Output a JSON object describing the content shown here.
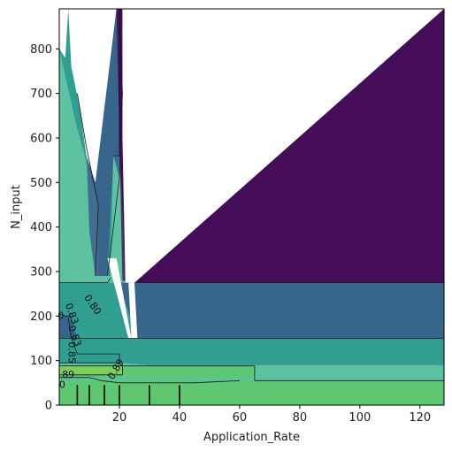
{
  "chart_data": {
    "type": "contour",
    "xlabel": "Application_Rate",
    "ylabel": "N_input",
    "xlim": [
      0,
      128
    ],
    "ylim": [
      0,
      890
    ],
    "xticks": [
      20,
      40,
      60,
      80,
      100,
      120
    ],
    "yticks": [
      0,
      100,
      200,
      300,
      400,
      500,
      600,
      700,
      800
    ],
    "grid": false,
    "colormap": "viridis",
    "alpha": 0.75,
    "fill_colors": {
      "level_lt_080": "#440154",
      "level_080_083": "#3b528b",
      "level_083_085": "#21918c",
      "level_085_087": "#27ad81",
      "level_087_089": "#5ec962",
      "level_ge_089": "#fde725",
      "line": "#1a1a1a"
    },
    "contour_levels": [
      0.8,
      0.83,
      0.85,
      0.87,
      0.89
    ],
    "contour_labels": [
      {
        "text": "0.80",
        "x": 11,
        "y": 225,
        "rotation": 55
      },
      {
        "text": "0.83",
        "x": 4,
        "y": 205,
        "rotation": 70
      },
      {
        "text": "0.83",
        "x": 5,
        "y": 155,
        "rotation": 70
      },
      {
        "text": "0.85",
        "x": 4,
        "y": 118,
        "rotation": 90
      },
      {
        "text": "0.89",
        "x": 19,
        "y": 80,
        "rotation": -60
      },
      {
        "text": "89",
        "x": 3,
        "y": 68,
        "rotation": 0
      },
      {
        "text": "0",
        "x": 0.5,
        "y": 200,
        "rotation": 0
      },
      {
        "text": "0",
        "x": 1,
        "y": 45,
        "rotation": 0
      }
    ],
    "regions": [
      {
        "level": "level_085_087",
        "points": [
          [
            0,
            890
          ],
          [
            128,
            890
          ],
          [
            128,
            0
          ],
          [
            0,
            0
          ]
        ]
      },
      {
        "level": "level_087_089",
        "points": [
          [
            0,
            55
          ],
          [
            128,
            55
          ],
          [
            128,
            0
          ],
          [
            0,
            0
          ]
        ]
      },
      {
        "level": "level_ge_089",
        "points": [
          [
            0,
            88
          ],
          [
            21,
            88
          ],
          [
            21,
            68
          ],
          [
            0,
            68
          ]
        ]
      },
      {
        "level": "level_087_089",
        "points": [
          [
            0,
            88
          ],
          [
            65,
            88
          ],
          [
            65,
            62
          ],
          [
            0,
            62
          ]
        ]
      },
      {
        "level": "level_083_085",
        "points": [
          [
            0,
            275
          ],
          [
            128,
            275
          ],
          [
            128,
            90
          ],
          [
            65,
            90
          ],
          [
            30,
            90
          ],
          [
            20,
            95
          ],
          [
            0,
            95
          ]
        ]
      },
      {
        "level": "level_083_085",
        "points": [
          [
            0,
            890
          ],
          [
            11,
            890
          ],
          [
            20,
            890
          ],
          [
            20,
            560
          ],
          [
            18,
            560
          ],
          [
            17,
            290
          ],
          [
            13,
            290
          ],
          [
            13,
            450
          ],
          [
            6,
            620
          ],
          [
            0,
            800
          ]
        ]
      },
      {
        "level": "level_080_083",
        "points": [
          [
            19,
            275
          ],
          [
            128,
            275
          ],
          [
            128,
            150
          ],
          [
            30,
            150
          ],
          [
            25,
            150
          ],
          [
            24,
            195
          ]
        ]
      },
      {
        "level": "level_080_083",
        "points": [
          [
            8,
            890
          ],
          [
            20,
            890
          ],
          [
            21,
            700
          ],
          [
            20,
            510
          ],
          [
            18,
            560
          ],
          [
            16,
            290
          ],
          [
            12,
            290
          ],
          [
            10,
            390
          ],
          [
            9,
            580
          ]
        ]
      },
      {
        "level": "level_080_083",
        "points": [
          [
            0,
            200
          ],
          [
            4,
            200
          ],
          [
            6,
            150
          ],
          [
            0,
            150
          ]
        ]
      },
      {
        "level": "level_lt_080",
        "points": [
          [
            19,
            890
          ],
          [
            21,
            890
          ],
          [
            22,
            275
          ],
          [
            128,
            275
          ],
          [
            128,
            890
          ],
          [
            25,
            275
          ],
          [
            21,
            280
          ],
          [
            20,
            600
          ]
        ]
      },
      {
        "level": "level_lt_080",
        "points": [
          [
            20,
            890
          ],
          [
            21,
            890
          ],
          [
            22,
            300
          ],
          [
            20,
            600
          ]
        ]
      },
      {
        "level": "level_lt_080",
        "points": [
          [
            25,
            275
          ],
          [
            128,
            275
          ],
          [
            128,
            890
          ]
        ]
      },
      {
        "level": "level_083_085",
        "points": [
          [
            3,
            890
          ],
          [
            8,
            890
          ],
          [
            6,
            720
          ],
          [
            4,
            760
          ]
        ]
      }
    ],
    "white_gaps": [
      {
        "points": [
          [
            3,
            890
          ],
          [
            19,
            890
          ],
          [
            12,
            500
          ],
          [
            9,
            560
          ],
          [
            7,
            660
          ],
          [
            4,
            760
          ]
        ]
      },
      {
        "points": [
          [
            21,
            890
          ],
          [
            128,
            890
          ],
          [
            25,
            275
          ],
          [
            22,
            275
          ],
          [
            21,
            600
          ]
        ]
      },
      {
        "points": [
          [
            0,
            890
          ],
          [
            3,
            890
          ],
          [
            2,
            780
          ],
          [
            0,
            800
          ]
        ]
      },
      {
        "points": [
          [
            23,
            275
          ],
          [
            25,
            275
          ],
          [
            26,
            150
          ],
          [
            24,
            150
          ]
        ]
      },
      {
        "points": [
          [
            16,
            330
          ],
          [
            19,
            330
          ],
          [
            24,
            150
          ],
          [
            23,
            150
          ]
        ]
      }
    ],
    "contour_lines": [
      {
        "points": [
          [
            0,
            275
          ],
          [
            16,
            275
          ],
          [
            17,
            285
          ]
        ]
      },
      {
        "points": [
          [
            26,
            275
          ],
          [
            128,
            275
          ]
        ]
      },
      {
        "points": [
          [
            30,
            150
          ],
          [
            128,
            150
          ]
        ]
      },
      {
        "points": [
          [
            0,
            150
          ],
          [
            30,
            150
          ]
        ]
      },
      {
        "points": [
          [
            0,
            95
          ],
          [
            20,
            95
          ],
          [
            21,
            88
          ],
          [
            65,
            88
          ],
          [
            65,
            55
          ],
          [
            128,
            55
          ]
        ]
      },
      {
        "points": [
          [
            0,
            88
          ],
          [
            21,
            88
          ],
          [
            21,
            68
          ],
          [
            0,
            68
          ]
        ]
      },
      {
        "points": [
          [
            0,
            62
          ],
          [
            10,
            62
          ],
          [
            14,
            55
          ],
          [
            20,
            50
          ],
          [
            45,
            50
          ],
          [
            60,
            55
          ]
        ]
      },
      {
        "points": [
          [
            12,
            290
          ],
          [
            13,
            450
          ],
          [
            9,
            580
          ],
          [
            6,
            700
          ]
        ]
      },
      {
        "points": [
          [
            16,
            290
          ],
          [
            20,
            510
          ],
          [
            21,
            700
          ],
          [
            20,
            890
          ]
        ]
      },
      {
        "points": [
          [
            18,
            560
          ],
          [
            20,
            560
          ],
          [
            20,
            890
          ]
        ]
      },
      {
        "points": [
          [
            3,
            195
          ],
          [
            4,
            150
          ],
          [
            6,
            115
          ],
          [
            20,
            115
          ],
          [
            20,
            95
          ]
        ]
      },
      {
        "points": [
          [
            4,
            200
          ],
          [
            2,
            200
          ],
          [
            0,
            205
          ]
        ]
      }
    ],
    "vertical_marks": [
      {
        "x": 6,
        "y": [
          0,
          45
        ]
      },
      {
        "x": 10,
        "y": [
          0,
          45
        ]
      },
      {
        "x": 15,
        "y": [
          0,
          45
        ]
      },
      {
        "x": 20,
        "y": [
          0,
          45
        ]
      },
      {
        "x": 30,
        "y": [
          0,
          45
        ]
      },
      {
        "x": 40,
        "y": [
          0,
          45
        ]
      }
    ]
  }
}
